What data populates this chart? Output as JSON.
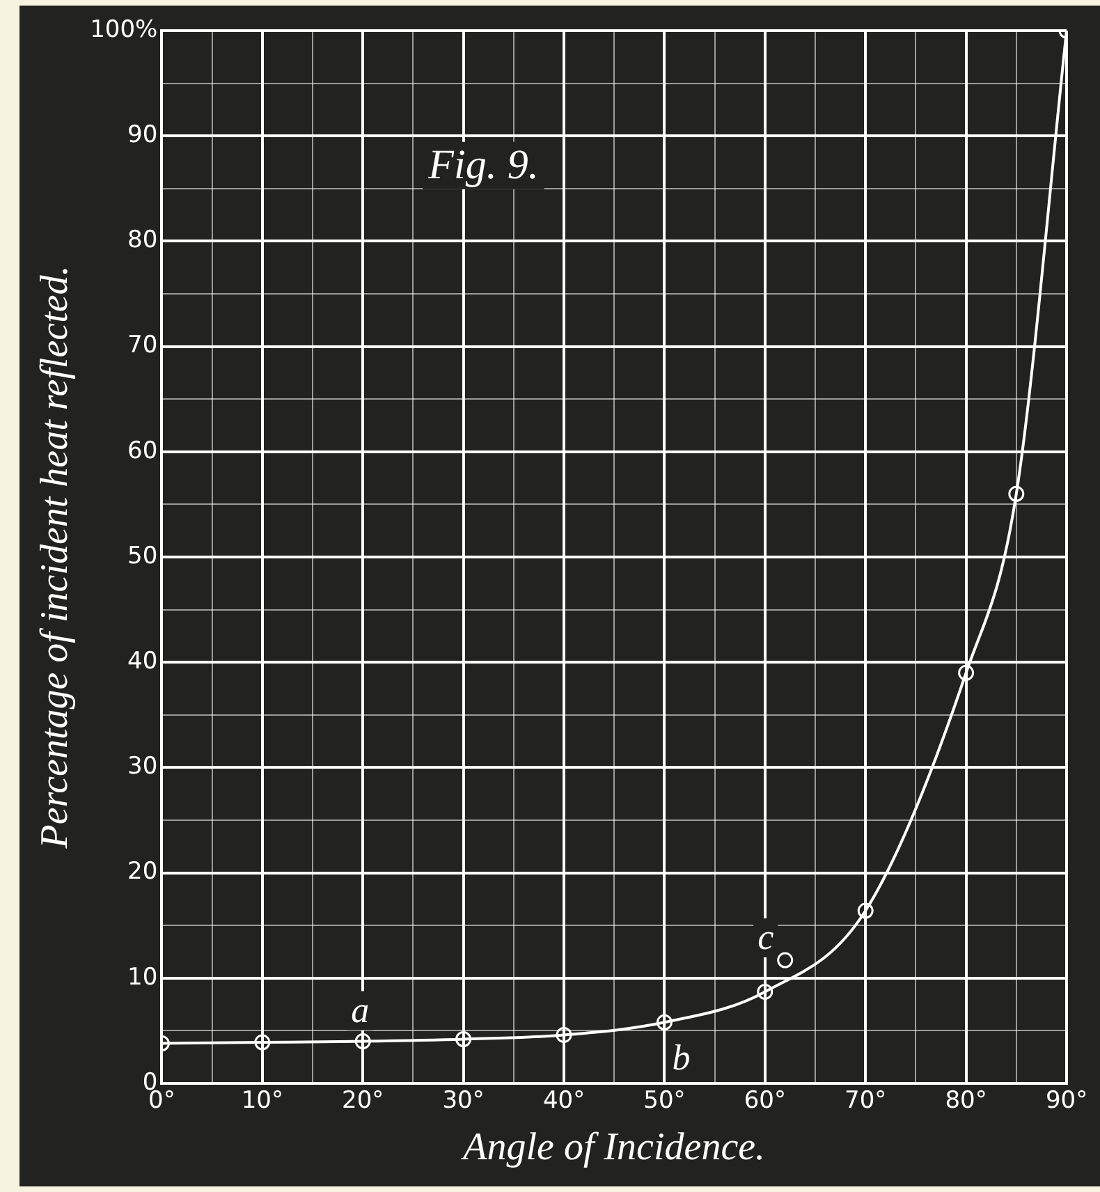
{
  "chart_data": {
    "type": "line",
    "title": "Fig. 9.",
    "xlabel": "Angle of Incidence.",
    "ylabel": "Percentage of incident heat reflected.",
    "x": [
      0,
      10,
      20,
      30,
      40,
      50,
      60,
      70,
      80,
      85,
      90
    ],
    "series": [
      {
        "color": "#ffffff",
        "values": [
          3.8,
          3.9,
          4.0,
          4.2,
          4.6,
          5.8,
          8.7,
          16.4,
          39,
          56,
          100
        ]
      },
      {
        "type": "scatter",
        "color": "#ffffff",
        "x": [
          62
        ],
        "values": [
          11.7
        ]
      }
    ],
    "xlim": [
      0,
      90
    ],
    "ylim": [
      0,
      100
    ],
    "xticks": [
      {
        "value": 0,
        "label": "0°"
      },
      {
        "value": 5,
        "label": null
      },
      {
        "value": 10,
        "label": "10°"
      },
      {
        "value": 15,
        "label": null
      },
      {
        "value": 20,
        "label": "20°"
      },
      {
        "value": 25,
        "label": null
      },
      {
        "value": 30,
        "label": "30°"
      },
      {
        "value": 35,
        "label": null
      },
      {
        "value": 40,
        "label": "40°"
      },
      {
        "value": 45,
        "label": null
      },
      {
        "value": 50,
        "label": "50°"
      },
      {
        "value": 55,
        "label": null
      },
      {
        "value": 60,
        "label": "60°"
      },
      {
        "value": 65,
        "label": null
      },
      {
        "value": 70,
        "label": "70°"
      },
      {
        "value": 75,
        "label": null
      },
      {
        "value": 80,
        "label": "80°"
      },
      {
        "value": 85,
        "label": null
      },
      {
        "value": 90,
        "label": "90°"
      }
    ],
    "yticks": [
      0,
      {
        "value": 5,
        "label": null
      },
      10,
      {
        "value": 15,
        "label": null
      },
      20,
      {
        "value": 25,
        "label": null
      },
      30,
      {
        "value": 35,
        "label": null
      },
      40,
      {
        "value": 45,
        "label": null
      },
      50,
      {
        "value": 55,
        "label": null
      },
      60,
      {
        "value": 65,
        "label": null
      },
      70,
      {
        "value": 75,
        "label": null
      },
      80,
      {
        "value": 85,
        "label": null
      },
      90,
      {
        "value": 95,
        "label": null
      },
      {
        "value": 100,
        "label": "100%"
      }
    ],
    "annotations": [
      {
        "text": "a",
        "x": 20,
        "y": 4.0
      },
      {
        "text": "b",
        "x": 50,
        "y": 5.8
      },
      {
        "text": "c",
        "x": 62,
        "y": 11.7
      }
    ],
    "grid": true,
    "marker": "circle",
    "line_style": "solid",
    "legend": false
  }
}
